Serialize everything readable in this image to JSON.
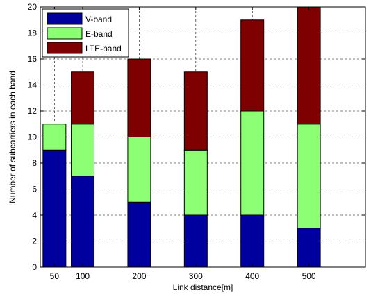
{
  "chart_data": {
    "type": "bar",
    "stacked": true,
    "x_is_numeric": true,
    "x": [
      50,
      100,
      200,
      300,
      400,
      500
    ],
    "series": [
      {
        "name": "V-band",
        "values": [
          9,
          7,
          5,
          4,
          4,
          3
        ],
        "color": "#00009E"
      },
      {
        "name": "E-band",
        "values": [
          2,
          4,
          5,
          5,
          8,
          8
        ],
        "color": "#8CFF74"
      },
      {
        "name": "LTE-band",
        "values": [
          0,
          4,
          6,
          6,
          7,
          9
        ],
        "color": "#7F0000"
      }
    ],
    "title": "",
    "xlabel": "Link distance[m]",
    "ylabel": "Number of subcarriers in each band",
    "xlim": [
      25,
      600
    ],
    "ylim": [
      0,
      20
    ],
    "xticks": [
      50,
      100,
      200,
      300,
      400,
      500
    ],
    "yticks": [
      0,
      2,
      4,
      6,
      8,
      10,
      12,
      14,
      16,
      18,
      20
    ],
    "grid": true,
    "legend_position": "top-left"
  }
}
